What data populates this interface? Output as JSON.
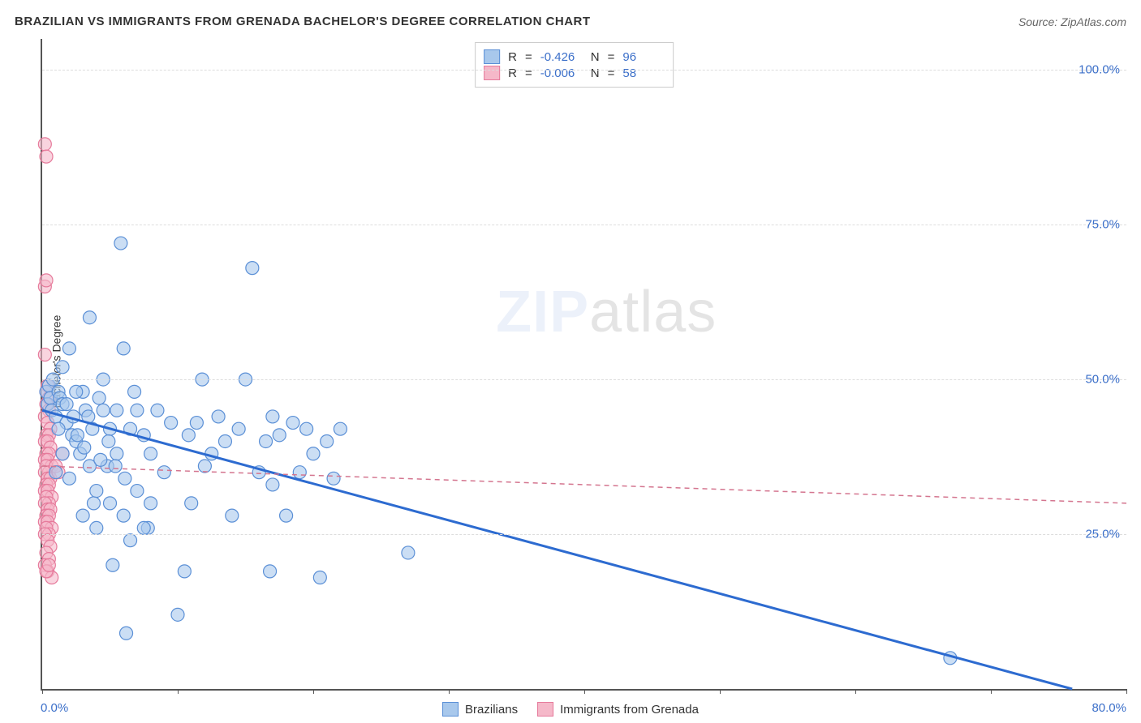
{
  "title": "BRAZILIAN VS IMMIGRANTS FROM GRENADA BACHELOR'S DEGREE CORRELATION CHART",
  "source": "Source: ZipAtlas.com",
  "y_axis_label": "Bachelor's Degree",
  "watermark_bold": "ZIP",
  "watermark_light": "atlas",
  "chart": {
    "type": "scatter",
    "background_color": "#ffffff",
    "grid_color": "#dddddd",
    "axis_color": "#555555",
    "tick_label_color": "#3b6fc9",
    "xlim": [
      0,
      80
    ],
    "ylim": [
      0,
      105
    ],
    "x_ticks": [
      0,
      10,
      20,
      30,
      40,
      50,
      60,
      70,
      80
    ],
    "y_gridlines": [
      25,
      50,
      75,
      100
    ],
    "y_tick_labels": [
      "25.0%",
      "50.0%",
      "75.0%",
      "100.0%"
    ],
    "x_min_label": "0.0%",
    "x_max_label": "80.0%",
    "marker_radius": 8,
    "marker_stroke_width": 1.2,
    "series": [
      {
        "name": "Brazilians",
        "fill": "#a8c8ec",
        "stroke": "#5a8fd6",
        "fill_opacity": 0.6,
        "r_value": "-0.426",
        "n_value": "96",
        "trend": {
          "x1": 0,
          "y1": 45,
          "x2": 76,
          "y2": 0,
          "color": "#2d6bd0",
          "width": 3,
          "dash": "none"
        },
        "points": [
          [
            0.3,
            48
          ],
          [
            0.4,
            46
          ],
          [
            0.5,
            49
          ],
          [
            0.6,
            47
          ],
          [
            0.7,
            45
          ],
          [
            0.8,
            50
          ],
          [
            1.0,
            44
          ],
          [
            1.2,
            48
          ],
          [
            1.3,
            47
          ],
          [
            1.5,
            46
          ],
          [
            1.5,
            52
          ],
          [
            1.8,
            43
          ],
          [
            2.0,
            55
          ],
          [
            2.2,
            41
          ],
          [
            2.5,
            40
          ],
          [
            2.8,
            38
          ],
          [
            3.0,
            48
          ],
          [
            3.2,
            45
          ],
          [
            3.4,
            44
          ],
          [
            3.5,
            60
          ],
          [
            3.8,
            30
          ],
          [
            4.0,
            26
          ],
          [
            4.2,
            47
          ],
          [
            4.5,
            50
          ],
          [
            4.8,
            36
          ],
          [
            5.0,
            42
          ],
          [
            5.2,
            20
          ],
          [
            5.5,
            45
          ],
          [
            5.8,
            72
          ],
          [
            6.0,
            55
          ],
          [
            6.2,
            9
          ],
          [
            6.5,
            24
          ],
          [
            6.8,
            48
          ],
          [
            7.0,
            32
          ],
          [
            7.5,
            41
          ],
          [
            7.8,
            26
          ],
          [
            8.0,
            38
          ],
          [
            8.5,
            45
          ],
          [
            9.0,
            35
          ],
          [
            9.5,
            43
          ],
          [
            10.0,
            12
          ],
          [
            10.5,
            19
          ],
          [
            10.8,
            41
          ],
          [
            11.0,
            30
          ],
          [
            11.4,
            43
          ],
          [
            11.8,
            50
          ],
          [
            12.0,
            36
          ],
          [
            12.5,
            38
          ],
          [
            13.0,
            44
          ],
          [
            13.5,
            40
          ],
          [
            14.0,
            28
          ],
          [
            14.5,
            42
          ],
          [
            15.0,
            50
          ],
          [
            15.5,
            68
          ],
          [
            16.0,
            35
          ],
          [
            16.5,
            40
          ],
          [
            16.8,
            19
          ],
          [
            17.0,
            33
          ],
          [
            17.0,
            44
          ],
          [
            17.5,
            41
          ],
          [
            18.0,
            28
          ],
          [
            18.5,
            43
          ],
          [
            19.0,
            35
          ],
          [
            19.5,
            42
          ],
          [
            20.0,
            38
          ],
          [
            20.5,
            18
          ],
          [
            21.0,
            40
          ],
          [
            21.5,
            34
          ],
          [
            22.0,
            42
          ],
          [
            27.0,
            22
          ],
          [
            1.0,
            35
          ],
          [
            1.5,
            38
          ],
          [
            2.0,
            34
          ],
          [
            2.5,
            48
          ],
          [
            3.0,
            28
          ],
          [
            3.5,
            36
          ],
          [
            4.0,
            32
          ],
          [
            4.5,
            45
          ],
          [
            5.0,
            30
          ],
          [
            5.5,
            38
          ],
          [
            6.0,
            28
          ],
          [
            6.5,
            42
          ],
          [
            7.0,
            45
          ],
          [
            7.5,
            26
          ],
          [
            8.0,
            30
          ],
          [
            1.2,
            42
          ],
          [
            1.8,
            46
          ],
          [
            2.3,
            44
          ],
          [
            67,
            5
          ],
          [
            2.6,
            41
          ],
          [
            3.1,
            39
          ],
          [
            3.7,
            42
          ],
          [
            4.3,
            37
          ],
          [
            4.9,
            40
          ],
          [
            5.4,
            36
          ],
          [
            6.1,
            34
          ]
        ]
      },
      {
        "name": "Immigrants from Grenada",
        "fill": "#f5b8c9",
        "stroke": "#e67a9b",
        "fill_opacity": 0.6,
        "r_value": "-0.006",
        "n_value": "58",
        "trend": {
          "x1": 0,
          "y1": 36,
          "x2": 80,
          "y2": 30,
          "color": "#d4758f",
          "width": 1.5,
          "dash": "6,5"
        },
        "points": [
          [
            0.2,
            88
          ],
          [
            0.3,
            86
          ],
          [
            0.2,
            65
          ],
          [
            0.3,
            66
          ],
          [
            0.2,
            54
          ],
          [
            0.4,
            49
          ],
          [
            0.3,
            48
          ],
          [
            0.5,
            47
          ],
          [
            0.3,
            46
          ],
          [
            0.5,
            45
          ],
          [
            0.2,
            44
          ],
          [
            0.4,
            43
          ],
          [
            0.6,
            42
          ],
          [
            0.3,
            41
          ],
          [
            0.5,
            41
          ],
          [
            0.2,
            40
          ],
          [
            0.4,
            40
          ],
          [
            0.6,
            39
          ],
          [
            0.3,
            38
          ],
          [
            0.5,
            38
          ],
          [
            0.2,
            37
          ],
          [
            0.4,
            37
          ],
          [
            0.7,
            36
          ],
          [
            0.3,
            36
          ],
          [
            0.5,
            35
          ],
          [
            0.2,
            35
          ],
          [
            0.4,
            34
          ],
          [
            0.6,
            34
          ],
          [
            0.3,
            33
          ],
          [
            0.5,
            33
          ],
          [
            0.2,
            32
          ],
          [
            0.4,
            32
          ],
          [
            0.7,
            31
          ],
          [
            0.3,
            31
          ],
          [
            0.5,
            30
          ],
          [
            0.2,
            30
          ],
          [
            0.4,
            29
          ],
          [
            0.6,
            29
          ],
          [
            0.3,
            28
          ],
          [
            0.5,
            28
          ],
          [
            0.2,
            27
          ],
          [
            0.4,
            27
          ],
          [
            0.7,
            26
          ],
          [
            0.3,
            26
          ],
          [
            0.5,
            25
          ],
          [
            0.2,
            25
          ],
          [
            0.4,
            24
          ],
          [
            0.6,
            23
          ],
          [
            0.3,
            22
          ],
          [
            0.5,
            21
          ],
          [
            0.2,
            20
          ],
          [
            0.4,
            19
          ],
          [
            0.7,
            18
          ],
          [
            0.3,
            19
          ],
          [
            0.5,
            20
          ],
          [
            1.0,
            36
          ],
          [
            1.2,
            35
          ],
          [
            1.5,
            38
          ]
        ]
      }
    ]
  },
  "stats_legend": {
    "r_label": "R",
    "n_label": "N",
    "eq": "="
  },
  "bottom_legend": {
    "items": [
      "Brazilians",
      "Immigrants from Grenada"
    ]
  }
}
